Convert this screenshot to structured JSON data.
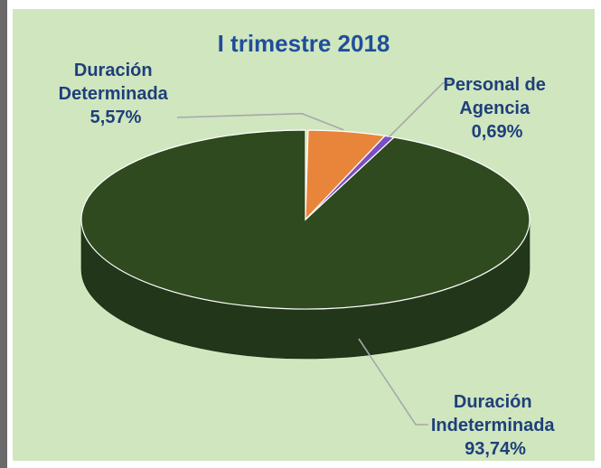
{
  "chart_data": {
    "type": "pie",
    "title": "I trimestre 2018",
    "unit": "%",
    "labels": [
      "Duración Indeterminada",
      "Duración Determinada",
      "Personal de Agencia"
    ],
    "values": [
      93.74,
      5.57,
      0.69
    ],
    "value_labels": [
      "93,74%",
      "5,57%",
      "0,69%"
    ],
    "label_lines": [
      [
        "Duración",
        "Indeterminada",
        "93,74%"
      ],
      [
        "Duración",
        "Determinada",
        "5,57%"
      ],
      [
        "Personal de",
        "Agencia",
        "0,69%"
      ]
    ],
    "colors": [
      "#2e4a1e",
      "#e9843b",
      "#7a4fc4"
    ],
    "side_colors": [
      "#22371a",
      "#b86224",
      "#5b3a95"
    ],
    "three_d": true
  },
  "style": {
    "panel_background": "#cfe6bf",
    "title_color": "#1f4e9a",
    "label_color": "#1f3f7a",
    "leader_color": "#a8a8a8"
  }
}
